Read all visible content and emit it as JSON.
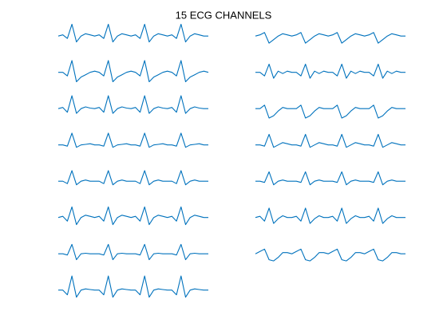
{
  "chart_data": {
    "type": "line",
    "title": "15 ECG CHANNELS",
    "color": "#0072bd",
    "ylim": [
      -1,
      1.3
    ],
    "series": [
      {
        "values": [
          0,
          0.1,
          -0.2,
          1.0,
          -0.5,
          0,
          0.2,
          0.1,
          0,
          0.1,
          -0.2,
          1.0,
          -0.5,
          0,
          0.2,
          0.1,
          0,
          0.1,
          -0.2,
          1.0,
          -0.5,
          0,
          0.2,
          0.1,
          0,
          0.1,
          -0.2,
          1.0,
          -0.5,
          0,
          0.2,
          0.1,
          0,
          0
        ]
      },
      {
        "values": [
          0,
          0,
          -0.3,
          1.0,
          -0.8,
          -0.4,
          -0.2,
          0,
          0.1,
          0,
          -0.3,
          1.0,
          -0.8,
          -0.4,
          -0.2,
          0,
          0.1,
          0,
          -0.3,
          1.0,
          -0.8,
          -0.4,
          -0.2,
          0,
          0.1,
          0,
          -0.3,
          1.0,
          -0.8,
          -0.4,
          -0.2,
          0,
          0.1,
          0
        ]
      },
      {
        "values": [
          0,
          0.1,
          -0.3,
          1.1,
          -0.4,
          0,
          0.15,
          0.05,
          0,
          0.1,
          -0.3,
          1.1,
          -0.4,
          0,
          0.15,
          0.05,
          0,
          0.1,
          -0.3,
          1.1,
          -0.4,
          0,
          0.15,
          0.05,
          0,
          0.1,
          -0.3,
          1.1,
          -0.4,
          0,
          0.15,
          0.05,
          0,
          0
        ]
      },
      {
        "values": [
          0,
          0,
          -0.1,
          1.0,
          -0.2,
          0,
          0.05,
          0.1,
          0,
          0,
          -0.1,
          1.0,
          -0.2,
          0,
          0.05,
          0.1,
          0,
          0,
          -0.1,
          1.0,
          -0.2,
          0,
          0.05,
          0.1,
          0,
          0,
          -0.1,
          1.0,
          -0.2,
          0,
          0.05,
          0.1,
          0,
          0
        ]
      },
      {
        "values": [
          0,
          0,
          -0.2,
          0.9,
          -0.3,
          0,
          0.1,
          0,
          0,
          0,
          -0.2,
          0.9,
          -0.3,
          0,
          0.1,
          0,
          0,
          0,
          -0.2,
          0.9,
          -0.3,
          0,
          0.1,
          0,
          0,
          0,
          -0.2,
          0.9,
          -0.3,
          0,
          0.1,
          0,
          0,
          0
        ]
      },
      {
        "values": [
          0,
          0.1,
          -0.3,
          0.9,
          -0.6,
          0,
          0.2,
          0.1,
          0,
          0.1,
          -0.3,
          0.9,
          -0.6,
          0,
          0.2,
          0.1,
          0,
          0.1,
          -0.3,
          0.9,
          -0.6,
          0,
          0.2,
          0.1,
          0,
          0.1,
          -0.3,
          0.9,
          -0.6,
          0,
          0.2,
          0.1,
          0,
          0
        ]
      },
      {
        "values": [
          0,
          0,
          -0.1,
          0.8,
          -0.5,
          0,
          0.05,
          0,
          0,
          0,
          -0.1,
          0.8,
          -0.5,
          0,
          0.05,
          0,
          0,
          0,
          -0.1,
          0.8,
          -0.5,
          0,
          0.05,
          0,
          0,
          0,
          -0.1,
          0.8,
          -0.5,
          0,
          0.05,
          0,
          0,
          0
        ]
      },
      {
        "values": [
          0,
          0,
          -0.4,
          1.2,
          -0.6,
          0,
          0.1,
          0.05,
          0,
          0,
          -0.4,
          1.2,
          -0.6,
          0,
          0.1,
          0.05,
          0,
          0,
          -0.4,
          1.2,
          -0.6,
          0,
          0.1,
          0.05,
          0,
          0,
          -0.4,
          1.2,
          -0.6,
          0,
          0.1,
          0.05,
          0,
          0
        ]
      },
      {
        "values": [
          0,
          0.1,
          0.3,
          -0.6,
          -0.3,
          0,
          0.2,
          0.1,
          0,
          0.1,
          0.3,
          -0.6,
          -0.3,
          0,
          0.2,
          0.1,
          0,
          0.1,
          0.3,
          -0.6,
          -0.3,
          0,
          0.2,
          0.1,
          0,
          0.1,
          0.3,
          -0.6,
          -0.3,
          0,
          0.2,
          0.1,
          0,
          0
        ]
      },
      {
        "values": [
          0,
          0,
          -0.3,
          0.7,
          -0.5,
          0.1,
          -0.1,
          0.1,
          0,
          0,
          -0.3,
          0.7,
          -0.5,
          0.1,
          -0.1,
          0.1,
          0,
          0,
          -0.3,
          0.7,
          -0.5,
          0.1,
          -0.1,
          0.1,
          0,
          0,
          -0.3,
          0.7,
          -0.5,
          0.1,
          -0.1,
          0.1,
          0,
          0
        ]
      },
      {
        "values": [
          0,
          0,
          0.3,
          -0.8,
          -0.6,
          -0.2,
          0.1,
          0,
          0,
          0,
          0.3,
          -0.8,
          -0.6,
          -0.2,
          0.1,
          0,
          0,
          0,
          0.3,
          -0.8,
          -0.6,
          -0.2,
          0.1,
          0,
          0,
          0,
          0.3,
          -0.8,
          -0.6,
          -0.2,
          0.1,
          0,
          0,
          0
        ]
      },
      {
        "values": [
          0,
          0,
          -0.1,
          0.9,
          -0.2,
          0,
          0.2,
          0.1,
          0,
          0,
          -0.1,
          0.9,
          -0.2,
          0,
          0.2,
          0.1,
          0,
          0,
          -0.1,
          0.9,
          -0.2,
          0,
          0.2,
          0.1,
          0,
          0,
          -0.1,
          0.9,
          -0.2,
          0,
          0.2,
          0.1,
          0,
          0
        ]
      },
      {
        "values": [
          0,
          0,
          -0.1,
          0.8,
          -0.3,
          0,
          0.1,
          0,
          0,
          0,
          -0.1,
          0.8,
          -0.3,
          0,
          0.1,
          0,
          0,
          0,
          -0.1,
          0.8,
          -0.3,
          0,
          0.1,
          0,
          0,
          0,
          -0.1,
          0.8,
          -0.3,
          0,
          0.1,
          0,
          0,
          0
        ]
      },
      {
        "values": [
          0,
          0.1,
          -0.3,
          0.8,
          -0.5,
          -0.1,
          0.15,
          0,
          0,
          0.1,
          -0.3,
          0.8,
          -0.5,
          -0.1,
          0.15,
          0,
          0,
          0.1,
          -0.3,
          0.8,
          -0.5,
          -0.1,
          0.15,
          0,
          0,
          0.1,
          -0.3,
          0.8,
          -0.5,
          -0.1,
          0.15,
          0,
          0,
          0
        ]
      },
      {
        "values": [
          0,
          0.2,
          0.4,
          -0.5,
          -0.6,
          -0.3,
          0.1,
          0.1,
          0,
          0.2,
          0.4,
          -0.5,
          -0.6,
          -0.3,
          0.1,
          0.1,
          0,
          0.2,
          0.4,
          -0.5,
          -0.6,
          -0.3,
          0.1,
          0.1,
          0,
          0.2,
          0.4,
          -0.5,
          -0.6,
          -0.3,
          0.1,
          0.1,
          0,
          0
        ]
      }
    ]
  }
}
